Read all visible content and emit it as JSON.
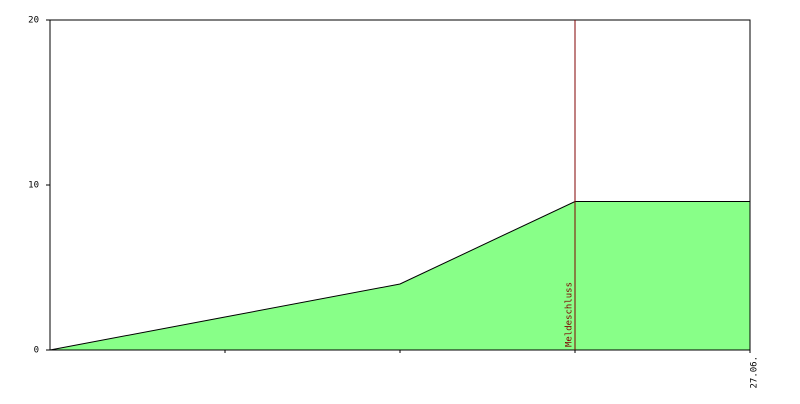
{
  "chart_data": {
    "type": "area",
    "categories": [
      null,
      null,
      null,
      null,
      "27.06."
    ],
    "series": [
      {
        "color": "#88ff88",
        "values": [
          0,
          2,
          4,
          9,
          9
        ]
      }
    ],
    "ylim": [
      0,
      20
    ],
    "yticks": [
      0,
      10,
      20
    ],
    "marker": {
      "label": "Meldeschluss",
      "at": 3,
      "color": "#800000"
    }
  }
}
